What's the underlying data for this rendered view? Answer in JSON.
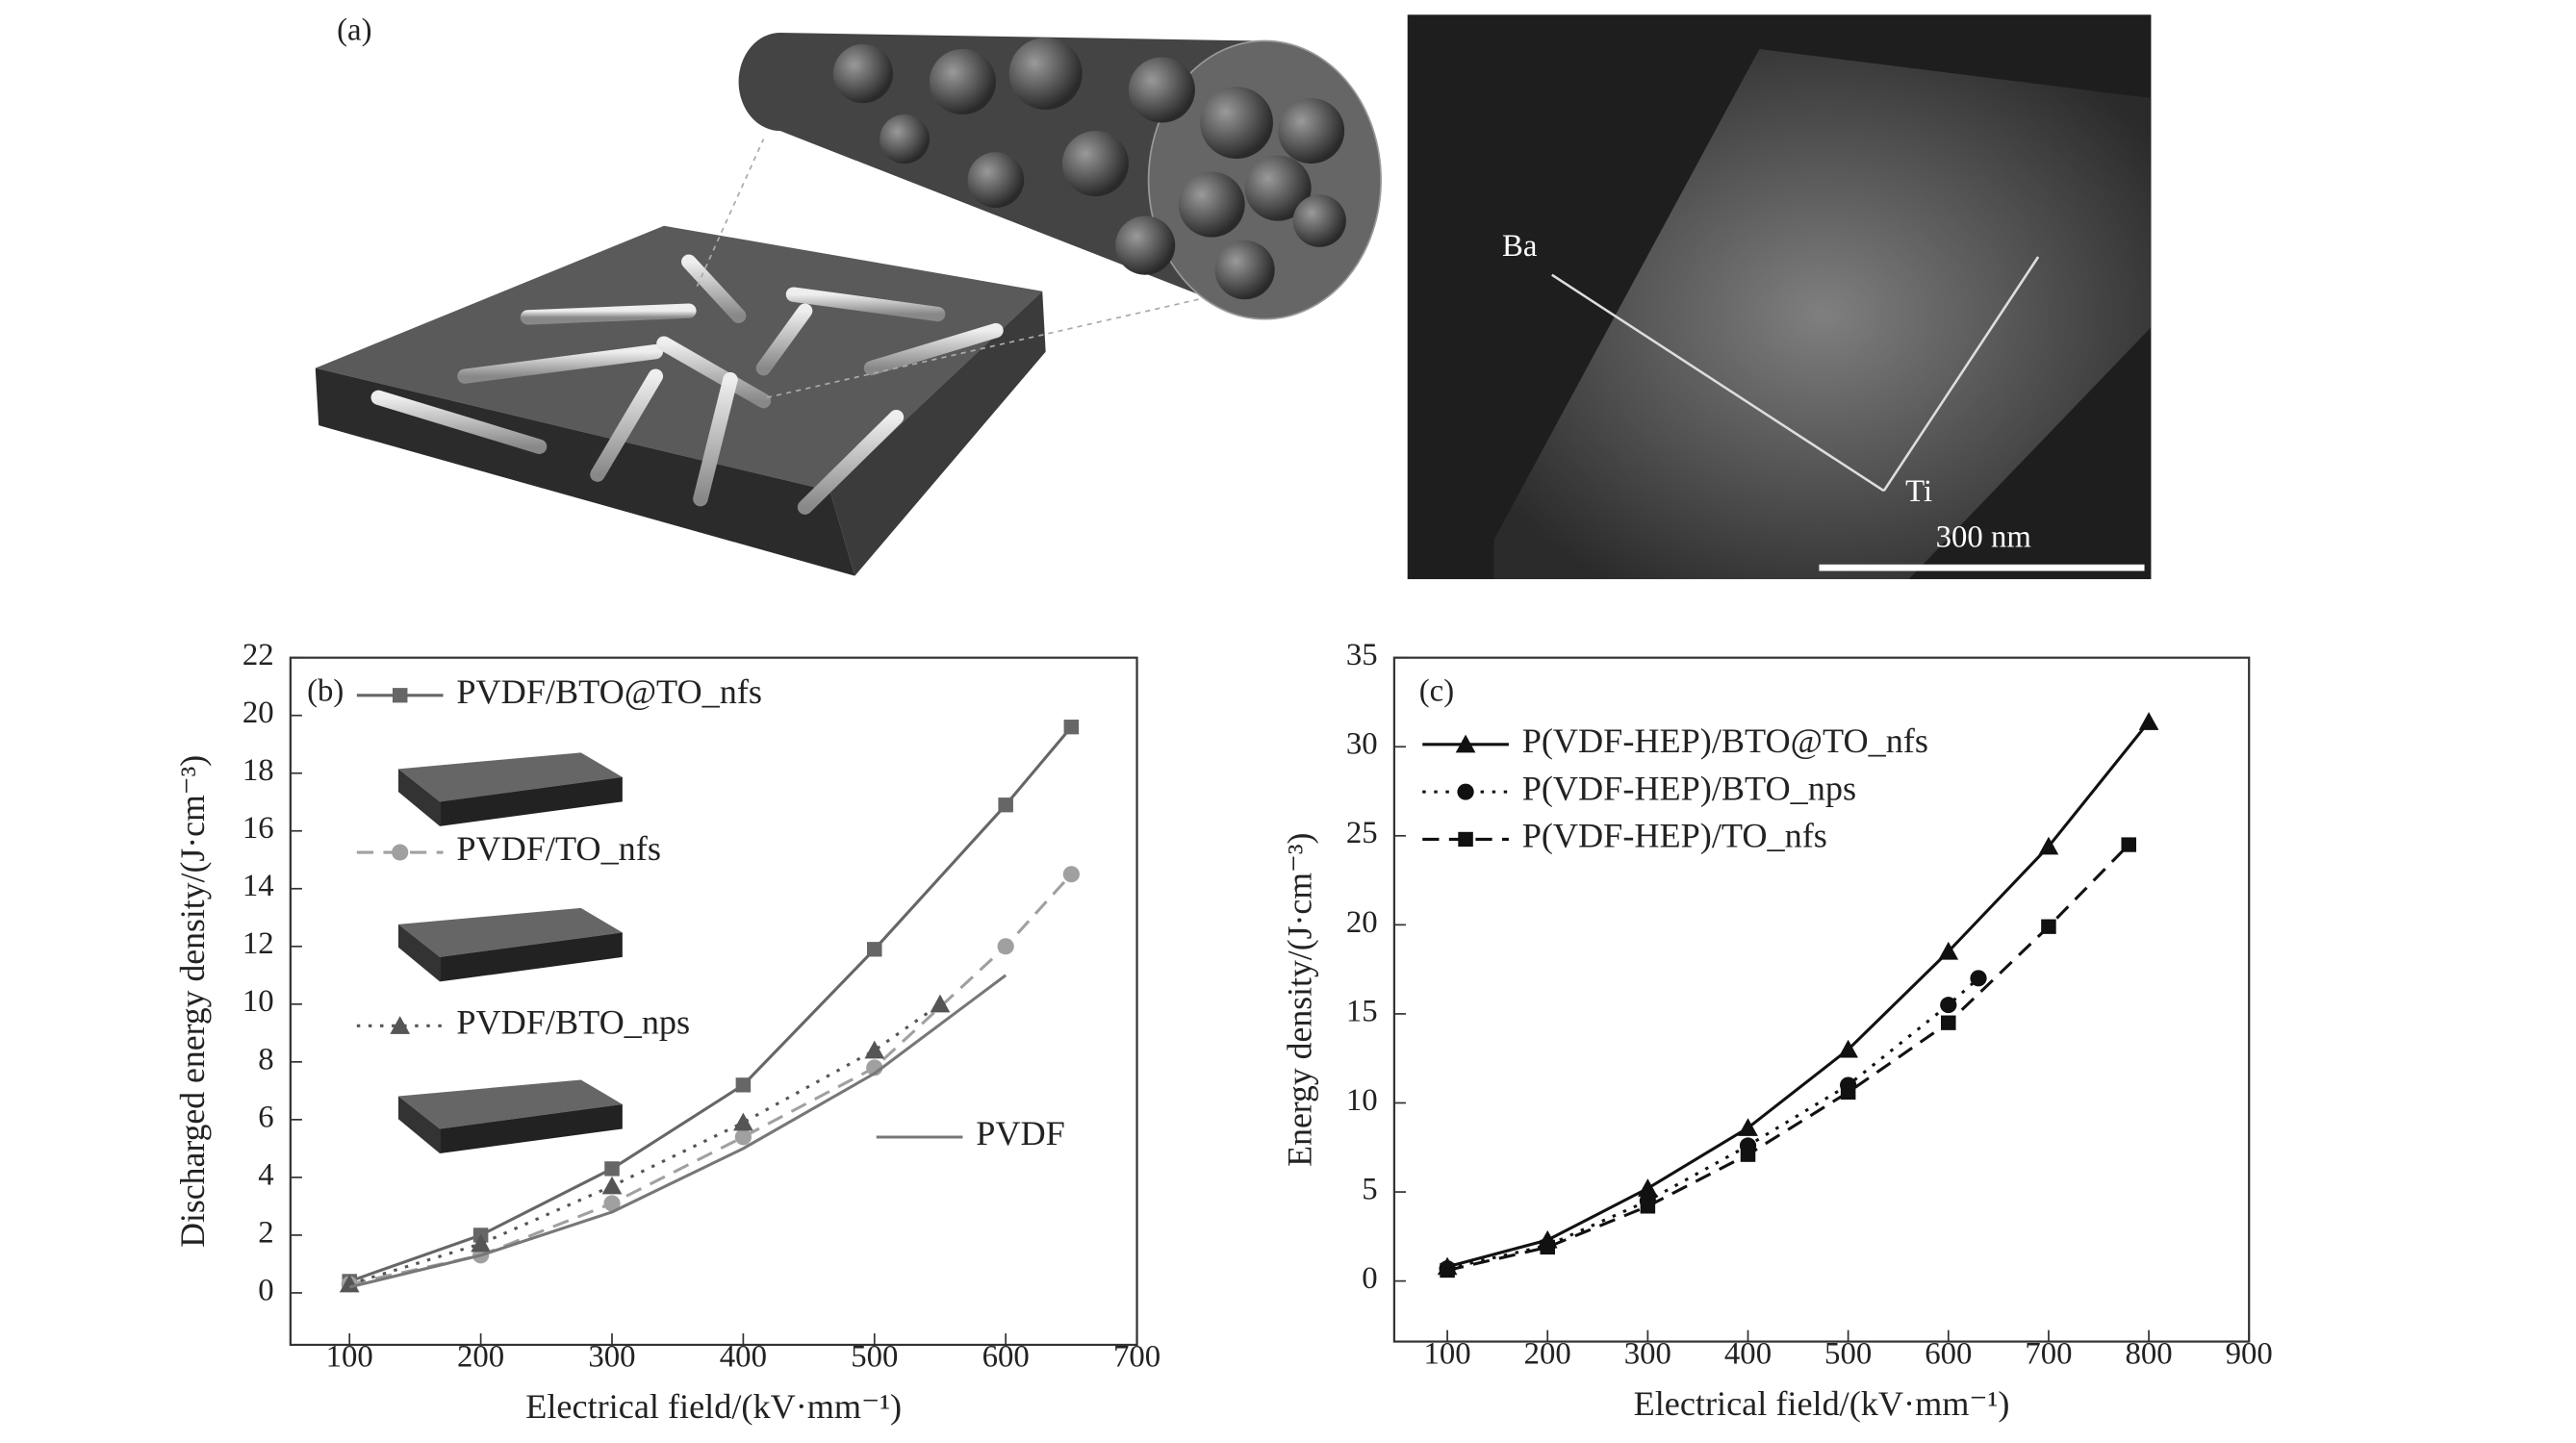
{
  "panel_a": {
    "label": "(a)",
    "element_1": "Ba",
    "element_2": "Ti",
    "scale_bar": "300 nm"
  },
  "chart_data": [
    {
      "type": "line",
      "panel_label": "(b)",
      "x_label": "Electrical field/(kV·mm⁻¹)",
      "y_label": "Discharged energy density/(J·cm⁻³)",
      "xlim": [
        55,
        700
      ],
      "xticks": [
        100,
        200,
        300,
        400,
        500,
        600,
        700
      ],
      "ylim": [
        -1.8,
        22
      ],
      "yticks": [
        0,
        2,
        4,
        6,
        8,
        10,
        12,
        14,
        16,
        18,
        20,
        22
      ],
      "series": [
        {
          "name": "PVDF/BTO@TO_nfs",
          "color": "#666666",
          "marker": "square",
          "line_style": "solid",
          "x": [
            100,
            200,
            300,
            400,
            500,
            600,
            650
          ],
          "values": [
            0.4,
            2.0,
            4.3,
            7.2,
            11.9,
            16.9,
            19.6
          ]
        },
        {
          "name": "PVDF/TO_nfs",
          "color": "#a0a0a0",
          "marker": "circle",
          "line_style": "dashed",
          "x": [
            100,
            200,
            300,
            400,
            500,
            600,
            650
          ],
          "values": [
            0.3,
            1.3,
            3.1,
            5.4,
            7.8,
            12.0,
            14.5
          ]
        },
        {
          "name": "PVDF/BTO_nps",
          "color": "#555555",
          "marker": "triangle",
          "line_style": "dotted",
          "x": [
            100,
            200,
            300,
            400,
            500,
            550
          ],
          "values": [
            0.3,
            1.7,
            3.7,
            5.9,
            8.4,
            10.0
          ]
        },
        {
          "name": "PVDF",
          "color": "#777777",
          "marker": "none",
          "line_style": "solid",
          "x": [
            100,
            200,
            300,
            400,
            500,
            600
          ],
          "values": [
            0.2,
            1.3,
            2.8,
            5.0,
            7.6,
            11.0
          ]
        }
      ]
    },
    {
      "type": "line",
      "panel_label": "(c)",
      "x_label": "Electrical field/(kV·mm⁻¹)",
      "y_label": "Energy density/(J·cm⁻³)",
      "xlim": [
        47,
        900
      ],
      "xticks": [
        100,
        200,
        300,
        400,
        500,
        600,
        700,
        800,
        900
      ],
      "ylim": [
        -3.4,
        35
      ],
      "yticks": [
        0,
        5,
        10,
        15,
        20,
        25,
        30,
        35
      ],
      "series": [
        {
          "name": "P(VDF-HEP)/BTO@TO_nfs",
          "color": "#111111",
          "marker": "triangle",
          "line_style": "solid",
          "x": [
            100,
            200,
            300,
            400,
            500,
            600,
            700,
            800
          ],
          "values": [
            0.8,
            2.3,
            5.2,
            8.6,
            13.0,
            18.5,
            24.4,
            31.4
          ]
        },
        {
          "name": "P(VDF-HEP)/BTO_nps",
          "color": "#111111",
          "marker": "circle",
          "line_style": "dotted",
          "x": [
            100,
            200,
            300,
            400,
            500,
            600,
            630
          ],
          "values": [
            0.7,
            2.0,
            4.5,
            7.6,
            11.0,
            15.5,
            17.0
          ]
        },
        {
          "name": "P(VDF-HEP)/TO_nfs",
          "color": "#111111",
          "marker": "square",
          "line_style": "dashed",
          "x": [
            100,
            200,
            300,
            400,
            500,
            600,
            700,
            780
          ],
          "values": [
            0.6,
            1.9,
            4.2,
            7.1,
            10.6,
            14.5,
            19.9,
            24.5
          ]
        }
      ]
    }
  ]
}
